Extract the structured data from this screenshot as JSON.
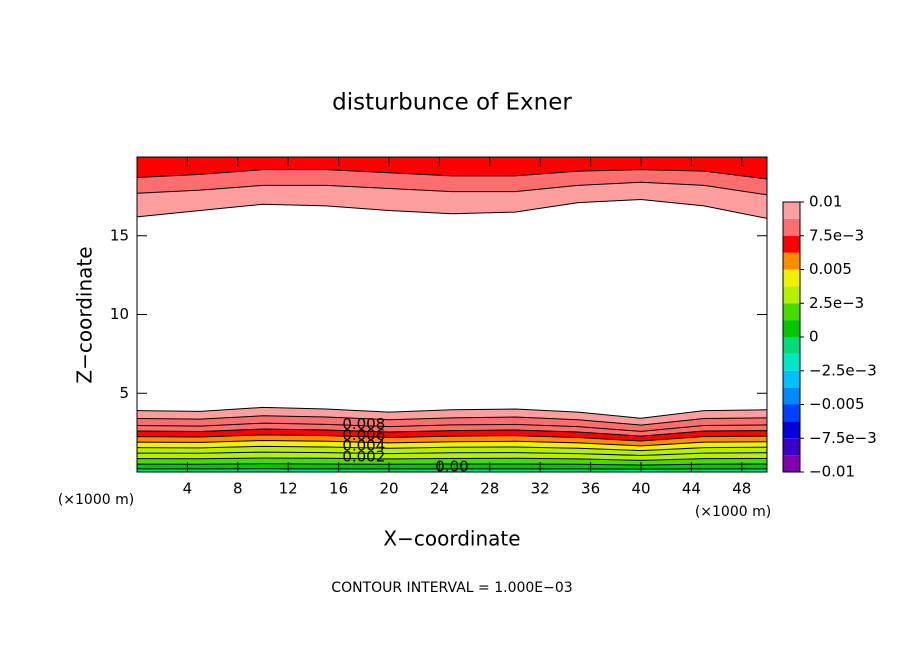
{
  "chart_data": {
    "type": "contour",
    "title": "disturbunce of Exner",
    "x_label": "X−coordinate",
    "y_label": "Z−coordinate",
    "x_unit": "(×1000 m)",
    "footer": "CONTOUR INTERVAL = 1.000E−03",
    "xlim": [
      0,
      50
    ],
    "ylim": [
      0,
      20
    ],
    "xticks": [
      4,
      8,
      12,
      16,
      20,
      24,
      28,
      32,
      36,
      40,
      44,
      48
    ],
    "yticks": [
      5,
      10,
      15
    ],
    "x": [
      0,
      5,
      10,
      15,
      20,
      25,
      30,
      35,
      40,
      45,
      50
    ],
    "lower_contours": [
      {
        "level": 0,
        "label": "0.00",
        "values": [
          0.2,
          0.2,
          0.21,
          0.2,
          0.2,
          0.2,
          0.2,
          0.2,
          0.18,
          0.2,
          0.2
        ]
      },
      {
        "level": 0.001,
        "values": [
          0.5,
          0.49,
          0.53,
          0.51,
          0.49,
          0.51,
          0.51,
          0.49,
          0.44,
          0.5,
          0.51
        ]
      },
      {
        "level": 0.002,
        "label": "0.002",
        "values": [
          0.85,
          0.84,
          0.89,
          0.87,
          0.83,
          0.86,
          0.87,
          0.83,
          0.74,
          0.85,
          0.86
        ]
      },
      {
        "level": 0.003,
        "values": [
          1.2,
          1.19,
          1.26,
          1.23,
          1.17,
          1.22,
          1.23,
          1.17,
          1.05,
          1.2,
          1.22
        ]
      },
      {
        "level": 0.004,
        "label": "0.004",
        "values": [
          1.55,
          1.53,
          1.63,
          1.59,
          1.51,
          1.57,
          1.59,
          1.51,
          1.36,
          1.55,
          1.57
        ]
      },
      {
        "level": 0.005,
        "values": [
          1.9,
          1.88,
          2.0,
          1.95,
          1.85,
          1.92,
          1.95,
          1.85,
          1.66,
          1.9,
          1.92
        ]
      },
      {
        "level": 0.006,
        "label": "0.006",
        "values": [
          2.25,
          2.22,
          2.36,
          2.31,
          2.19,
          2.28,
          2.31,
          2.19,
          1.97,
          2.25,
          2.28
        ]
      },
      {
        "level": 0.007,
        "values": [
          2.6,
          2.57,
          2.73,
          2.67,
          2.54,
          2.63,
          2.67,
          2.54,
          2.28,
          2.6,
          2.63
        ]
      },
      {
        "level": 0.008,
        "label": "0.008",
        "values": [
          2.95,
          2.91,
          3.1,
          3.02,
          2.88,
          2.99,
          3.02,
          2.88,
          2.58,
          2.95,
          2.99
        ]
      },
      {
        "level": 0.009,
        "values": [
          3.4,
          3.36,
          3.57,
          3.49,
          3.32,
          3.44,
          3.49,
          3.32,
          2.98,
          3.4,
          3.44
        ]
      },
      {
        "level": 0.01,
        "values": [
          3.9,
          3.85,
          4.1,
          4.0,
          3.8,
          3.95,
          4.0,
          3.8,
          3.41,
          3.9,
          3.95
        ]
      }
    ],
    "upper_contours": [
      {
        "level": 0.01,
        "values": [
          16.2,
          16.6,
          17.0,
          16.9,
          16.6,
          16.4,
          16.5,
          17.1,
          17.3,
          16.9,
          16.1
        ]
      },
      {
        "level": 0.009,
        "values": [
          17.7,
          17.9,
          18.2,
          18.2,
          18.0,
          17.8,
          17.8,
          18.2,
          18.4,
          18.2,
          17.6
        ]
      },
      {
        "level": 0.008,
        "values": [
          18.7,
          18.9,
          19.2,
          19.2,
          19.0,
          18.8,
          18.8,
          19.1,
          19.2,
          19.1,
          18.6
        ]
      }
    ],
    "clim": [
      -0.01,
      0.01
    ],
    "colors": [
      "#8200b4",
      "#3c00c8",
      "#0000dc",
      "#0040ff",
      "#0088ff",
      "#00c0ff",
      "#00e6c8",
      "#00dc78",
      "#00c800",
      "#46dc00",
      "#b4f000",
      "#f0f000",
      "#ff8c00",
      "#ff0000",
      "#ff6e6e",
      "#ff9e9e"
    ],
    "colorbar_ticks": [
      {
        "value": -0.01,
        "label": "−0.01"
      },
      {
        "value": -0.0075,
        "label": "−7.5e−3"
      },
      {
        "value": -0.005,
        "label": "−0.005"
      },
      {
        "value": -0.0025,
        "label": "−2.5e−3"
      },
      0,
      {
        "value": 0.0025,
        "label": "2.5e−3"
      },
      0.005,
      {
        "value": 0.0075,
        "label": "7.5e−3"
      },
      0.01
    ]
  }
}
